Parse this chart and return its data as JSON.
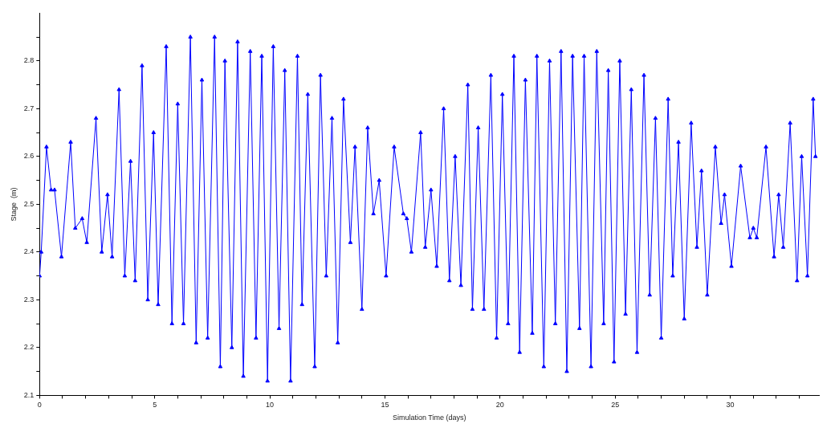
{
  "chart_data": {
    "type": "line",
    "xlabel": "Simulation Time (days)",
    "ylabel": "Stage  (m)",
    "xlim": [
      0,
      33.85
    ],
    "ylim": [
      2.1,
      2.9
    ],
    "xticks": [
      0,
      {
        "value": 1,
        "label": null
      },
      {
        "value": 2,
        "label": null
      },
      {
        "value": 3,
        "label": null
      },
      {
        "value": 4,
        "label": null
      },
      5,
      {
        "value": 6,
        "label": null
      },
      {
        "value": 7,
        "label": null
      },
      {
        "value": 8,
        "label": null
      },
      {
        "value": 9,
        "label": null
      },
      10,
      {
        "value": 11,
        "label": null
      },
      {
        "value": 12,
        "label": null
      },
      {
        "value": 13,
        "label": null
      },
      {
        "value": 14,
        "label": null
      },
      15,
      {
        "value": 16,
        "label": null
      },
      {
        "value": 17,
        "label": null
      },
      {
        "value": 18,
        "label": null
      },
      {
        "value": 19,
        "label": null
      },
      20,
      {
        "value": 21,
        "label": null
      },
      {
        "value": 22,
        "label": null
      },
      {
        "value": 23,
        "label": null
      },
      {
        "value": 24,
        "label": null
      },
      25,
      {
        "value": 26,
        "label": null
      },
      {
        "value": 27,
        "label": null
      },
      {
        "value": 28,
        "label": null
      },
      {
        "value": 29,
        "label": null
      },
      30,
      {
        "value": 31,
        "label": null
      },
      {
        "value": 32,
        "label": null
      },
      {
        "value": 33,
        "label": null
      }
    ],
    "yticks": [
      2.1,
      {
        "value": 2.15,
        "label": null
      },
      2.2,
      {
        "value": 2.25,
        "label": null
      },
      2.3,
      {
        "value": 2.35,
        "label": null
      },
      2.4,
      {
        "value": 2.45,
        "label": null
      },
      2.5,
      {
        "value": 2.55,
        "label": null
      },
      2.6,
      {
        "value": 2.65,
        "label": null
      },
      2.7,
      {
        "value": 2.75,
        "label": null
      },
      2.8,
      {
        "value": 2.85,
        "label": null
      }
    ],
    "grid": false,
    "legend": false,
    "marker": "triangle",
    "line_style": "solid",
    "series": [
      {
        "color": "#0000ff",
        "x": [
          0,
          0.07,
          0.3,
          0.5,
          0.65,
          0.95,
          1.35,
          1.55,
          1.85,
          2.05,
          2.45,
          2.7,
          2.95,
          3.15,
          3.45,
          3.7,
          3.95,
          4.15,
          4.45,
          4.7,
          4.95,
          5.15,
          5.5,
          5.75,
          6.0,
          6.25,
          6.55,
          6.8,
          7.05,
          7.3,
          7.6,
          7.85,
          8.05,
          8.35,
          8.6,
          8.85,
          9.15,
          9.4,
          9.65,
          9.9,
          10.15,
          10.4,
          10.65,
          10.9,
          11.2,
          11.4,
          11.65,
          11.95,
          12.2,
          12.45,
          12.7,
          12.95,
          13.2,
          13.5,
          13.7,
          14.0,
          14.25,
          14.5,
          14.75,
          15.05,
          15.4,
          15.8,
          15.95,
          16.15,
          16.55,
          16.75,
          17.0,
          17.25,
          17.55,
          17.8,
          18.05,
          18.3,
          18.6,
          18.8,
          19.05,
          19.3,
          19.6,
          19.85,
          20.1,
          20.35,
          20.6,
          20.85,
          21.1,
          21.4,
          21.6,
          21.9,
          22.15,
          22.4,
          22.65,
          22.9,
          23.15,
          23.45,
          23.65,
          23.95,
          24.2,
          24.5,
          24.7,
          24.95,
          25.2,
          25.45,
          25.7,
          25.95,
          26.25,
          26.5,
          26.75,
          27.0,
          27.3,
          27.5,
          27.75,
          28.0,
          28.3,
          28.55,
          28.75,
          29.0,
          29.35,
          29.6,
          29.75,
          30.05,
          30.45,
          30.85,
          31.0,
          31.15,
          31.55,
          31.9,
          32.1,
          32.3,
          32.6,
          32.9,
          33.1,
          33.35,
          33.6,
          33.7
        ],
        "values": [
          2.35,
          2.4,
          2.62,
          2.53,
          2.53,
          2.39,
          2.63,
          2.45,
          2.47,
          2.42,
          2.68,
          2.4,
          2.52,
          2.39,
          2.74,
          2.35,
          2.59,
          2.34,
          2.79,
          2.3,
          2.65,
          2.29,
          2.83,
          2.25,
          2.71,
          2.25,
          2.85,
          2.21,
          2.76,
          2.22,
          2.85,
          2.16,
          2.8,
          2.2,
          2.84,
          2.14,
          2.82,
          2.22,
          2.81,
          2.13,
          2.83,
          2.24,
          2.78,
          2.13,
          2.81,
          2.29,
          2.73,
          2.16,
          2.77,
          2.35,
          2.68,
          2.21,
          2.72,
          2.42,
          2.62,
          2.28,
          2.66,
          2.48,
          2.55,
          2.35,
          2.62,
          2.48,
          2.47,
          2.4,
          2.65,
          2.41,
          2.53,
          2.37,
          2.7,
          2.34,
          2.6,
          2.33,
          2.75,
          2.28,
          2.66,
          2.28,
          2.77,
          2.22,
          2.73,
          2.25,
          2.81,
          2.19,
          2.76,
          2.23,
          2.81,
          2.16,
          2.8,
          2.25,
          2.82,
          2.15,
          2.81,
          2.24,
          2.81,
          2.16,
          2.82,
          2.25,
          2.78,
          2.17,
          2.8,
          2.27,
          2.74,
          2.19,
          2.77,
          2.31,
          2.68,
          2.22,
          2.72,
          2.35,
          2.63,
          2.26,
          2.67,
          2.41,
          2.57,
          2.31,
          2.62,
          2.46,
          2.52,
          2.37,
          2.58,
          2.43,
          2.45,
          2.43,
          2.62,
          2.39,
          2.52,
          2.41,
          2.67,
          2.34,
          2.6,
          2.35,
          2.72,
          2.6
        ]
      }
    ]
  }
}
